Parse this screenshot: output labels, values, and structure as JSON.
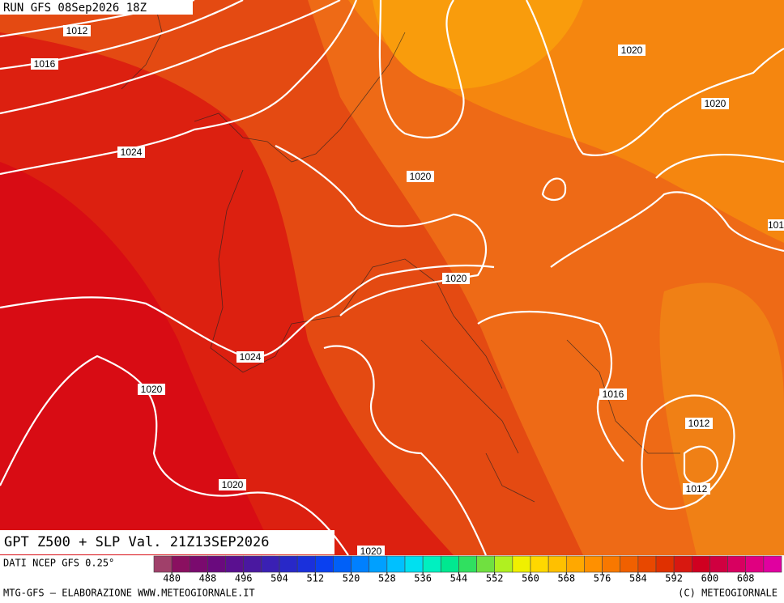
{
  "header": {
    "run": "RUN GFS 08Sep2026 18Z",
    "product": "GPT Z500 + SLP Val. 21Z13SEP2026"
  },
  "isobar_labels": [
    "1012",
    "1016",
    "1020",
    "1020",
    "1024",
    "1020",
    "101",
    "1020",
    "1024",
    "1020",
    "1016",
    "1012",
    "1020",
    "1012",
    "1020"
  ],
  "footer": {
    "source": "DATI NCEP GFS 0.25°",
    "credit": "MTG-GFS — ELABORAZIONE WWW.METEOGIORNALE.IT",
    "copyright": "(C) METEOGIORNALE"
  },
  "colorbar": {
    "range": [
      476,
      616
    ],
    "ticks": [
      480,
      488,
      496,
      504,
      512,
      520,
      528,
      536,
      544,
      552,
      560,
      568,
      576,
      584,
      592,
      600,
      608
    ],
    "colors": [
      "#a0406a",
      "#8a1060",
      "#7a0a6e",
      "#6a0a7e",
      "#5a1090",
      "#4a18a0",
      "#3a20b4",
      "#2828c8",
      "#1a30dc",
      "#0a40f0",
      "#0060f8",
      "#0080ff",
      "#00a0ff",
      "#00c0ff",
      "#00e0f0",
      "#00f0c0",
      "#00e890",
      "#30e060",
      "#70e040",
      "#b0f020",
      "#f0f000",
      "#ffd800",
      "#ffc000",
      "#ffa800",
      "#ff9000",
      "#f87800",
      "#f06000",
      "#e84800",
      "#e03000",
      "#d81810",
      "#d00020",
      "#d00040",
      "#d80060",
      "#e00080",
      "#e000a0"
    ]
  }
}
